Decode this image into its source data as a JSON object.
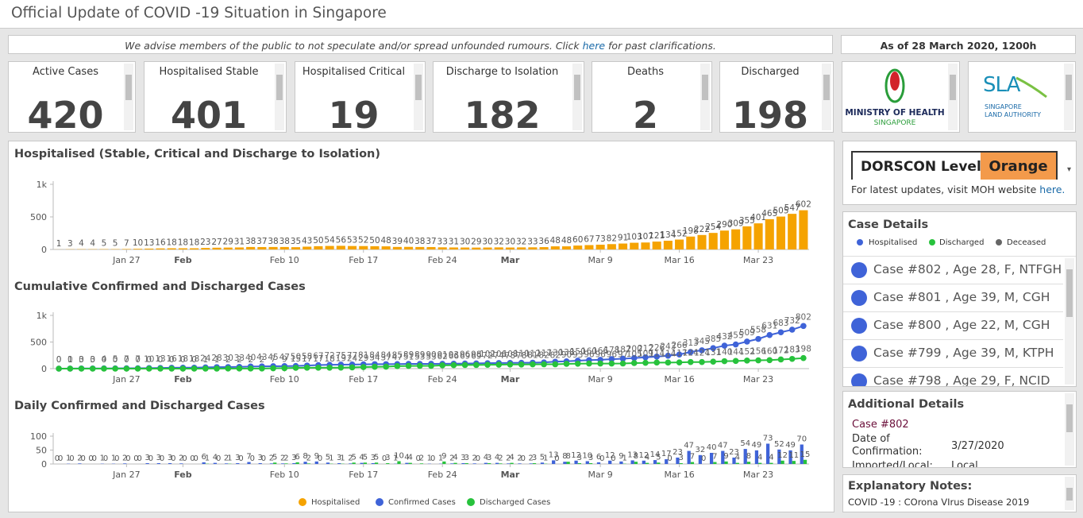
{
  "header": {
    "title": "Official Update of COVID -19 Situation in Singapore"
  },
  "notice": {
    "text": "We advise members of the public to not speculate and/or spread unfounded rumours.  Click",
    "link": "here",
    "after": "for past clarifications."
  },
  "as_of": "As of 28 March 2020, 1200h",
  "stats": [
    {
      "label": "Active Cases",
      "value": 420
    },
    {
      "label": "Hospitalised Stable",
      "value": 401
    },
    {
      "label": "Hospitalised Critical",
      "value": 19
    },
    {
      "label": "Discharge to Isolation",
      "value": 182
    },
    {
      "label": "Deaths",
      "value": 2
    },
    {
      "label": "Discharged",
      "value": 198
    }
  ],
  "logos": {
    "moh": [
      "MINISTRY OF HEALTH",
      "SINGAPORE"
    ],
    "sla": [
      "SLA",
      "SINGAPORE",
      "LAND AUTHORITY"
    ]
  },
  "chart_data": [
    {
      "type": "bar",
      "title": "Hospitalised (Stable, Critical and Discharge to Isolation)",
      "categories": [
        null,
        null,
        null,
        null,
        null,
        null,
        "Jan 27",
        null,
        null,
        null,
        null,
        "Feb",
        null,
        null,
        null,
        null,
        null,
        null,
        null,
        null,
        "Feb 10",
        null,
        null,
        null,
        null,
        null,
        null,
        "Feb 17",
        null,
        null,
        null,
        null,
        null,
        null,
        "Feb 24",
        null,
        null,
        null,
        null,
        null,
        "Mar",
        null,
        null,
        null,
        null,
        null,
        null,
        null,
        "Mar 9",
        null,
        null,
        null,
        null,
        null,
        null,
        "Mar 16",
        null,
        null,
        null,
        null,
        null,
        null,
        "Mar 23",
        null,
        null,
        null,
        null
      ],
      "series": [
        {
          "name": "Hospitalised",
          "color": "#f5a300",
          "values": [
            1,
            3,
            4,
            4,
            5,
            5,
            7,
            10,
            13,
            16,
            18,
            18,
            18,
            23,
            27,
            29,
            31,
            38,
            37,
            38,
            38,
            35,
            43,
            50,
            54,
            56,
            53,
            52,
            50,
            48,
            39,
            40,
            38,
            37,
            33,
            31,
            30,
            29,
            30,
            32,
            30,
            32,
            33,
            36,
            48,
            48,
            60,
            67,
            73,
            82,
            91,
            103,
            107,
            121,
            134,
            152,
            198,
            222,
            254,
            290,
            309,
            355,
            401,
            465,
            505,
            547,
            602
          ]
        }
      ],
      "ylim": [
        0,
        1000
      ],
      "yticks": [
        0,
        500,
        {
          "value": 1000,
          "label": "1k"
        }
      ]
    },
    {
      "type": "line",
      "title": "Cumulative Confirmed and Discharged Cases",
      "categories": [
        null,
        null,
        null,
        null,
        null,
        null,
        "Jan 27",
        null,
        null,
        null,
        null,
        "Feb",
        null,
        null,
        null,
        null,
        null,
        null,
        null,
        null,
        "Feb 10",
        null,
        null,
        null,
        null,
        null,
        null,
        "Feb 17",
        null,
        null,
        null,
        null,
        null,
        null,
        "Feb 24",
        null,
        null,
        null,
        null,
        null,
        "Mar",
        null,
        null,
        null,
        null,
        null,
        null,
        null,
        "Mar 9",
        null,
        null,
        null,
        null,
        null,
        null,
        "Mar 16",
        null,
        null,
        null,
        null,
        null,
        null,
        "Mar 23",
        null,
        null,
        null,
        null
      ],
      "series": [
        {
          "color": "#3f63d8",
          "values": [
            0,
            1,
            3,
            3,
            4,
            5,
            7,
            7,
            10,
            13,
            16,
            18,
            18,
            24,
            28,
            30,
            33,
            40,
            43,
            45,
            47,
            50,
            58,
            67,
            72,
            75,
            77,
            81,
            84,
            84,
            85,
            89,
            89,
            90,
            91,
            93,
            96,
            98,
            102,
            106,
            108,
            110,
            112,
            117,
            130,
            138,
            150,
            160,
            166,
            178,
            187,
            200,
            212,
            226,
            243,
            266,
            313,
            345,
            385,
            432,
            455,
            509,
            558,
            631,
            683,
            732,
            802
          ]
        },
        {
          "color": "#27c23c",
          "values": [
            0,
            0,
            0,
            0,
            0,
            0,
            0,
            0,
            0,
            0,
            0,
            0,
            0,
            1,
            1,
            2,
            2,
            2,
            2,
            7,
            9,
            15,
            17,
            17,
            18,
            19,
            24,
            29,
            34,
            37,
            47,
            51,
            53,
            53,
            62,
            66,
            69,
            69,
            72,
            74,
            78,
            78,
            81,
            82,
            82,
            90,
            93,
            96,
            96,
            96,
            97,
            105,
            109,
            114,
            114,
            117,
            124,
            124,
            131,
            140,
            144,
            152,
            156,
            160,
            172,
            183,
            198
          ]
        }
      ],
      "ylim": [
        0,
        1000
      ],
      "yticks": [
        0,
        500,
        {
          "value": 1000,
          "label": "1k"
        }
      ]
    },
    {
      "type": "bar",
      "title": "Daily Confirmed and Discharged Cases",
      "categories": [
        null,
        null,
        null,
        null,
        null,
        null,
        "Jan 27",
        null,
        null,
        null,
        null,
        "Feb",
        null,
        null,
        null,
        null,
        null,
        null,
        null,
        null,
        "Feb 10",
        null,
        null,
        null,
        null,
        null,
        null,
        "Feb 17",
        null,
        null,
        null,
        null,
        null,
        null,
        "Feb 24",
        null,
        null,
        null,
        null,
        null,
        "Mar",
        null,
        null,
        null,
        null,
        null,
        null,
        null,
        "Mar 9",
        null,
        null,
        null,
        null,
        null,
        null,
        "Mar 16",
        null,
        null,
        null,
        null,
        null,
        null,
        "Mar 23",
        null,
        null,
        null,
        null
      ],
      "series": [
        {
          "name": "Confirmed Cases",
          "color": "#3f63d8",
          "values": [
            0,
            1,
            2,
            0,
            1,
            1,
            2,
            0,
            3,
            3,
            3,
            2,
            0,
            6,
            4,
            2,
            3,
            7,
            3,
            2,
            2,
            3,
            8,
            9,
            5,
            3,
            2,
            4,
            3,
            0,
            1,
            4,
            0,
            1,
            1,
            2,
            3,
            2,
            4,
            4,
            2,
            2,
            2,
            5,
            13,
            8,
            12,
            10,
            6,
            12,
            9,
            13,
            12,
            14,
            17,
            23,
            47,
            32,
            40,
            47,
            23,
            54,
            49,
            73,
            52,
            49,
            70
          ]
        },
        {
          "name": "Discharged Cases",
          "color": "#27c23c",
          "values": [
            0,
            0,
            0,
            0,
            0,
            0,
            0,
            0,
            0,
            0,
            0,
            0,
            0,
            1,
            0,
            1,
            0,
            0,
            0,
            5,
            2,
            6,
            2,
            0,
            1,
            1,
            5,
            5,
            5,
            3,
            10,
            4,
            2,
            0,
            9,
            4,
            3,
            0,
            3,
            2,
            4,
            0,
            3,
            1,
            0,
            8,
            3,
            3,
            0,
            0,
            1,
            8,
            4,
            5,
            0,
            3,
            7,
            0,
            7,
            9,
            4,
            8,
            4,
            4,
            12,
            11,
            15
          ]
        }
      ],
      "ylim": [
        0,
        100
      ],
      "yticks": [
        0,
        50,
        100
      ]
    }
  ],
  "dorscon": {
    "label": "DORSCON Level",
    "level": "Orange",
    "note": "For latest updates, visit MOH website",
    "link": "here."
  },
  "case_details": {
    "title": "Case Details",
    "legend": [
      "Hospitalised",
      "Discharged",
      "Deceased"
    ],
    "cases": [
      "Case #802 , Age 28, F, NTFGH",
      "Case #801 , Age 39, M, CGH",
      "Case #800 , Age 22, M, CGH",
      "Case #799 , Age 39, M, KTPH",
      "Case #798 , Age 29, F, NCID"
    ]
  },
  "additional": {
    "title": "Additional Details",
    "case": "Case #802",
    "fields": [
      {
        "label": "Date of Confirmation:",
        "value": "3/27/2020"
      },
      {
        "label": "Imported/Local:",
        "value": "Local"
      }
    ]
  },
  "notes": {
    "title": "Explanatory Notes:",
    "lines": [
      "COVID -19 : COrona VIrus Disease 2019"
    ]
  }
}
